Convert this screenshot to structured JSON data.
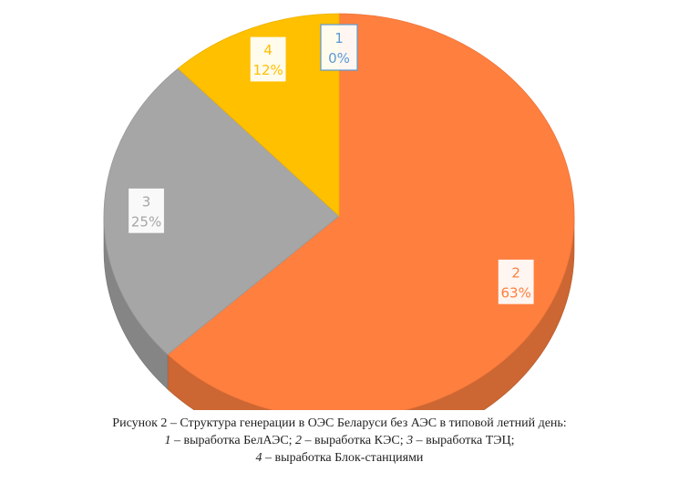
{
  "chart_data": {
    "type": "pie",
    "style": "3d",
    "categories": [
      "1",
      "2",
      "3",
      "4"
    ],
    "values": [
      0,
      63,
      25,
      12
    ],
    "value_labels": [
      "0%",
      "63%",
      "25%",
      "12%"
    ],
    "colors": [
      "#5b9bd5",
      "#ff7f3f",
      "#a6a6a6",
      "#ffc000"
    ],
    "label_text_colors": [
      "#5b9bd5",
      "#ff7f3f",
      "#a6a6a6",
      "#ffc000"
    ]
  },
  "caption": {
    "line1": "Рисунок 2 –  Структура генерации в ОЭС Беларуси без АЭС в типовой летний день:",
    "line2": [
      {
        "num": "1",
        "text": " – выработка БелАЭС; "
      },
      {
        "num": "2",
        "text": " – выработка КЭС; "
      },
      {
        "num": "3",
        "text": " – выработка ТЭЦ;"
      }
    ],
    "line3": [
      {
        "num": "4",
        "text": " – выработка Блок-станциями"
      }
    ]
  }
}
